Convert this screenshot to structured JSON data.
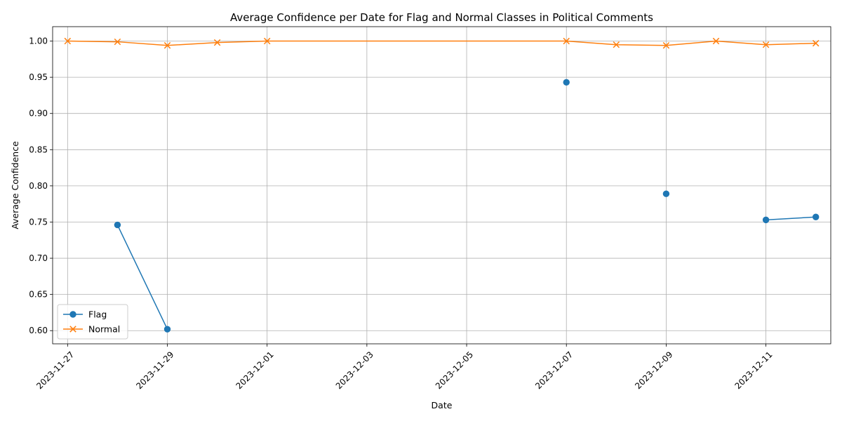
{
  "chart_data": {
    "type": "line",
    "title": "Average Confidence per Date for Flag and Normal Classes in Political Comments",
    "xlabel": "Date",
    "ylabel": "Average Confidence",
    "x_ticks": [
      "2023-11-27",
      "2023-11-29",
      "2023-12-01",
      "2023-12-03",
      "2023-12-05",
      "2023-12-07",
      "2023-12-09",
      "2023-12-11"
    ],
    "y_ticks": [
      0.6,
      0.65,
      0.7,
      0.75,
      0.8,
      0.85,
      0.9,
      0.95,
      1.0
    ],
    "xlim": [
      "2023-11-26T16:48",
      "2023-12-12T07:12"
    ],
    "ylim": [
      0.5818,
      1.0199
    ],
    "grid": true,
    "legend_position": "lower-left",
    "series": [
      {
        "name": "Flag",
        "color": "#1f77b4",
        "marker": "circle",
        "points": [
          {
            "x": "2023-11-28",
            "y": 0.746
          },
          {
            "x": "2023-11-29",
            "y": 0.602
          },
          {
            "x": "2023-11-30",
            "y": null
          },
          {
            "x": "2023-12-01",
            "y": null
          },
          {
            "x": "2023-12-07",
            "y": 0.943
          },
          {
            "x": "2023-12-08",
            "y": null
          },
          {
            "x": "2023-12-09",
            "y": 0.789
          },
          {
            "x": "2023-12-10",
            "y": null
          },
          {
            "x": "2023-12-11",
            "y": 0.753
          },
          {
            "x": "2023-12-12",
            "y": 0.757
          }
        ]
      },
      {
        "name": "Normal",
        "color": "#ff7f0e",
        "marker": "x",
        "points": [
          {
            "x": "2023-11-27",
            "y": 1.0
          },
          {
            "x": "2023-11-28",
            "y": 0.999
          },
          {
            "x": "2023-11-29",
            "y": 0.994
          },
          {
            "x": "2023-11-30",
            "y": 0.998
          },
          {
            "x": "2023-12-01",
            "y": 1.0
          },
          {
            "x": "2023-12-07",
            "y": 1.0
          },
          {
            "x": "2023-12-08",
            "y": 0.995
          },
          {
            "x": "2023-12-09",
            "y": 0.994
          },
          {
            "x": "2023-12-10",
            "y": 1.0
          },
          {
            "x": "2023-12-11",
            "y": 0.995
          },
          {
            "x": "2023-12-12",
            "y": 0.997
          }
        ]
      }
    ]
  }
}
